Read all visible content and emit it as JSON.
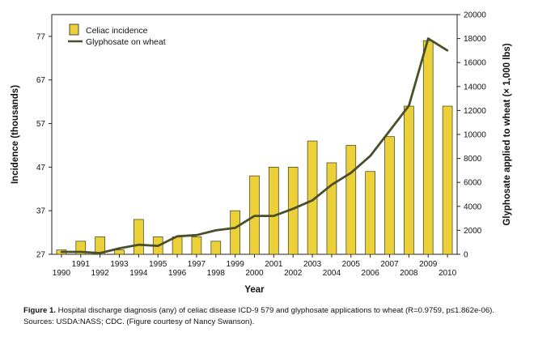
{
  "chart_data": {
    "type": "bar+line",
    "x_years": [
      1990,
      1991,
      1992,
      1993,
      1994,
      1995,
      1996,
      1997,
      1998,
      1999,
      2000,
      2001,
      2002,
      2003,
      2004,
      2005,
      2006,
      2007,
      2008,
      2009,
      2010
    ],
    "x_tick_labels_low": [
      "1990",
      "1992",
      "1994",
      "1996",
      "1998",
      "2000",
      "2002",
      "2004",
      "2006",
      "2008",
      "2010"
    ],
    "x_tick_labels_high": [
      "1991",
      "1993",
      "1995",
      "1997",
      "1999",
      "2001",
      "2003",
      "2005",
      "2007",
      "2009"
    ],
    "xlabel": "Year",
    "y_left": {
      "label": "Incidence (thousands)",
      "ticks": [
        27,
        37,
        47,
        57,
        67,
        77
      ],
      "range": [
        27,
        82
      ]
    },
    "y_right": {
      "label": "Glyphosate applied to wheat (× 1,000 lbs)",
      "ticks": [
        0,
        2000,
        4000,
        6000,
        8000,
        10000,
        12000,
        14000,
        16000,
        18000,
        20000
      ],
      "range": [
        0,
        20000
      ]
    },
    "series": [
      {
        "name": "Celiac incidence",
        "kind": "bar",
        "axis": "left",
        "color": "#ecd03a",
        "values": [
          28,
          30,
          31,
          28,
          35,
          31,
          31,
          31,
          30,
          37,
          45,
          47,
          47,
          53,
          48,
          52,
          46,
          54,
          61,
          76,
          61
        ]
      },
      {
        "name": "Glyphosate on wheat",
        "kind": "line",
        "axis": "right",
        "color": "#4a4f2a",
        "values": [
          200,
          200,
          100,
          500,
          800,
          700,
          1500,
          1600,
          2000,
          2200,
          3200,
          3200,
          3800,
          4500,
          5800,
          6800,
          8200,
          10300,
          12400,
          18000,
          17000
        ]
      }
    ]
  },
  "caption": {
    "label": "Figure 1.",
    "text": " Hospital discharge diagnosis (any) of celiac disease ICD-9 579 and glyphosate applications to wheat (R=0.9759, p≤1.862e-06). Sources: USDA:NASS; CDC. (Figure courtesy of Nancy Swanson)."
  }
}
